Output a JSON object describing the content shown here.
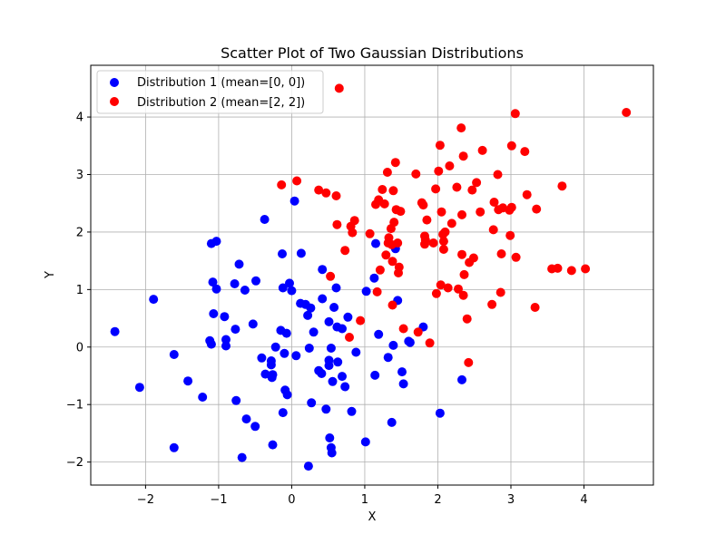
{
  "chart_data": {
    "type": "scatter",
    "title": "Scatter Plot of Two Gaussian Distributions",
    "xlabel": "X",
    "ylabel": "Y",
    "xlim": [
      -2.75,
      4.95
    ],
    "ylim": [
      -2.4,
      4.9
    ],
    "xticks": [
      -2,
      -1,
      0,
      1,
      2,
      3,
      4
    ],
    "yticks": [
      -2,
      -1,
      0,
      1,
      2,
      3,
      4
    ],
    "xtick_labels": [
      "−2",
      "−1",
      "0",
      "1",
      "2",
      "3",
      "4"
    ],
    "ytick_labels": [
      "−2",
      "−1",
      "0",
      "1",
      "2",
      "3",
      "4"
    ],
    "grid": true,
    "legend_position": "top-left",
    "series": [
      {
        "name": "Distribution 1 (mean=[0, 0])",
        "color": "#0000ff",
        "points": [
          [
            -2.42,
            0.27
          ],
          [
            -2.08,
            -0.7
          ],
          [
            -1.89,
            0.83
          ],
          [
            -1.61,
            -0.13
          ],
          [
            -1.61,
            -1.75
          ],
          [
            -1.42,
            -0.59
          ],
          [
            -1.22,
            -0.87
          ],
          [
            -1.12,
            0.11
          ],
          [
            -1.1,
            0.05
          ],
          [
            -1.1,
            1.8
          ],
          [
            -1.08,
            1.13
          ],
          [
            -1.07,
            0.58
          ],
          [
            -1.03,
            1.84
          ],
          [
            -1.03,
            1.01
          ],
          [
            -0.92,
            0.53
          ],
          [
            -0.9,
            0.13
          ],
          [
            -0.9,
            0.02
          ],
          [
            -0.78,
            1.1
          ],
          [
            -0.77,
            0.31
          ],
          [
            -0.76,
            -0.93
          ],
          [
            -0.72,
            1.44
          ],
          [
            -0.68,
            -1.92
          ],
          [
            -0.64,
            0.99
          ],
          [
            -0.62,
            -1.25
          ],
          [
            -0.53,
            0.4
          ],
          [
            -0.5,
            -1.38
          ],
          [
            -0.49,
            1.15
          ],
          [
            -0.41,
            -0.19
          ],
          [
            -0.37,
            2.22
          ],
          [
            -0.36,
            -0.47
          ],
          [
            -0.28,
            -0.24
          ],
          [
            -0.28,
            -0.31
          ],
          [
            -0.27,
            -0.53
          ],
          [
            -0.26,
            -0.48
          ],
          [
            -0.26,
            -1.7
          ],
          [
            -0.22,
            0.0
          ],
          [
            -0.15,
            0.29
          ],
          [
            -0.13,
            1.62
          ],
          [
            -0.12,
            1.03
          ],
          [
            -0.12,
            -1.14
          ],
          [
            -0.1,
            -0.11
          ],
          [
            -0.09,
            -0.75
          ],
          [
            -0.07,
            0.24
          ],
          [
            -0.06,
            -0.83
          ],
          [
            -0.03,
            1.11
          ],
          [
            0.0,
            0.98
          ],
          [
            0.04,
            2.54
          ],
          [
            0.06,
            -0.15
          ],
          [
            0.12,
            0.76
          ],
          [
            0.13,
            1.63
          ],
          [
            0.19,
            0.74
          ],
          [
            0.22,
            0.55
          ],
          [
            0.23,
            -2.07
          ],
          [
            0.24,
            -0.02
          ],
          [
            0.26,
            0.68
          ],
          [
            0.27,
            -0.97
          ],
          [
            0.3,
            0.26
          ],
          [
            0.37,
            -0.41
          ],
          [
            0.41,
            -0.46
          ],
          [
            0.42,
            0.84
          ],
          [
            0.42,
            1.35
          ],
          [
            0.47,
            -1.08
          ],
          [
            0.51,
            0.44
          ],
          [
            0.51,
            -0.32
          ],
          [
            0.51,
            -0.23
          ],
          [
            0.52,
            -1.58
          ],
          [
            0.54,
            -0.02
          ],
          [
            0.54,
            -1.75
          ],
          [
            0.55,
            -1.84
          ],
          [
            0.56,
            -0.6
          ],
          [
            0.58,
            0.69
          ],
          [
            0.61,
            1.03
          ],
          [
            0.62,
            0.35
          ],
          [
            0.63,
            -0.26
          ],
          [
            0.69,
            0.32
          ],
          [
            0.69,
            -0.51
          ],
          [
            0.73,
            -0.69
          ],
          [
            0.77,
            0.52
          ],
          [
            0.82,
            -1.12
          ],
          [
            0.88,
            -0.09
          ],
          [
            1.01,
            -1.65
          ],
          [
            1.02,
            0.97
          ],
          [
            1.13,
            1.2
          ],
          [
            1.14,
            -0.49
          ],
          [
            1.15,
            1.8
          ],
          [
            1.19,
            0.22
          ],
          [
            1.32,
            -0.18
          ],
          [
            1.37,
            -1.31
          ],
          [
            1.39,
            0.03
          ],
          [
            1.42,
            1.71
          ],
          [
            1.45,
            0.81
          ],
          [
            1.51,
            -0.43
          ],
          [
            1.53,
            -0.64
          ],
          [
            1.6,
            0.1
          ],
          [
            1.62,
            0.08
          ],
          [
            1.8,
            0.35
          ],
          [
            2.03,
            -1.15
          ],
          [
            2.33,
            -0.57
          ]
        ]
      },
      {
        "name": "Distribution 2 (mean=[2, 2])",
        "color": "#ff0000",
        "points": [
          [
            -0.14,
            2.82
          ],
          [
            0.07,
            2.89
          ],
          [
            0.37,
            2.73
          ],
          [
            0.47,
            2.68
          ],
          [
            0.53,
            1.23
          ],
          [
            0.61,
            2.63
          ],
          [
            0.62,
            2.13
          ],
          [
            0.65,
            4.5
          ],
          [
            0.73,
            1.68
          ],
          [
            0.79,
            0.17
          ],
          [
            0.81,
            2.1
          ],
          [
            0.83,
            1.99
          ],
          [
            0.86,
            2.2
          ],
          [
            0.94,
            0.46
          ],
          [
            1.07,
            1.97
          ],
          [
            1.15,
            2.48
          ],
          [
            1.17,
            0.96
          ],
          [
            1.19,
            2.56
          ],
          [
            1.21,
            1.34
          ],
          [
            1.24,
            2.74
          ],
          [
            1.27,
            2.49
          ],
          [
            1.29,
            1.6
          ],
          [
            1.31,
            3.04
          ],
          [
            1.32,
            1.81
          ],
          [
            1.33,
            1.9
          ],
          [
            1.36,
            2.06
          ],
          [
            1.37,
            1.78
          ],
          [
            1.38,
            0.73
          ],
          [
            1.38,
            1.49
          ],
          [
            1.39,
            2.72
          ],
          [
            1.4,
            2.17
          ],
          [
            1.42,
            3.21
          ],
          [
            1.43,
            2.39
          ],
          [
            1.45,
            1.81
          ],
          [
            1.46,
            1.29
          ],
          [
            1.47,
            1.39
          ],
          [
            1.49,
            2.36
          ],
          [
            1.53,
            0.32
          ],
          [
            1.7,
            3.01
          ],
          [
            1.73,
            0.26
          ],
          [
            1.78,
            2.51
          ],
          [
            1.8,
            2.47
          ],
          [
            1.82,
            1.93
          ],
          [
            1.82,
            1.79
          ],
          [
            1.83,
            1.86
          ],
          [
            1.85,
            2.21
          ],
          [
            1.89,
            0.07
          ],
          [
            1.94,
            1.81
          ],
          [
            1.97,
            2.75
          ],
          [
            1.98,
            0.93
          ],
          [
            2.01,
            3.06
          ],
          [
            2.03,
            3.51
          ],
          [
            2.04,
            1.08
          ],
          [
            2.05,
            2.35
          ],
          [
            2.07,
            1.96
          ],
          [
            2.08,
            1.7
          ],
          [
            2.08,
            1.84
          ],
          [
            2.1,
            2.0
          ],
          [
            2.14,
            1.03
          ],
          [
            2.16,
            3.15
          ],
          [
            2.19,
            2.15
          ],
          [
            2.26,
            2.78
          ],
          [
            2.28,
            1.01
          ],
          [
            2.32,
            3.81
          ],
          [
            2.33,
            1.61
          ],
          [
            2.33,
            2.3
          ],
          [
            2.35,
            0.9
          ],
          [
            2.35,
            3.32
          ],
          [
            2.36,
            1.26
          ],
          [
            2.4,
            0.49
          ],
          [
            2.42,
            -0.27
          ],
          [
            2.43,
            1.47
          ],
          [
            2.47,
            2.73
          ],
          [
            2.49,
            1.55
          ],
          [
            2.53,
            2.86
          ],
          [
            2.58,
            2.35
          ],
          [
            2.61,
            3.42
          ],
          [
            2.74,
            0.74
          ],
          [
            2.76,
            2.04
          ],
          [
            2.77,
            2.52
          ],
          [
            2.82,
            3.0
          ],
          [
            2.83,
            2.39
          ],
          [
            2.86,
            0.95
          ],
          [
            2.87,
            1.62
          ],
          [
            2.89,
            2.42
          ],
          [
            2.98,
            2.38
          ],
          [
            2.99,
            1.94
          ],
          [
            3.01,
            2.43
          ],
          [
            3.01,
            3.5
          ],
          [
            3.06,
            4.06
          ],
          [
            3.07,
            1.56
          ],
          [
            3.19,
            3.4
          ],
          [
            3.22,
            2.65
          ],
          [
            3.33,
            0.69
          ],
          [
            3.35,
            2.4
          ],
          [
            3.56,
            1.36
          ],
          [
            3.64,
            1.37
          ],
          [
            3.7,
            2.8
          ],
          [
            3.83,
            1.33
          ],
          [
            4.02,
            1.36
          ],
          [
            4.58,
            4.08
          ]
        ]
      }
    ]
  }
}
